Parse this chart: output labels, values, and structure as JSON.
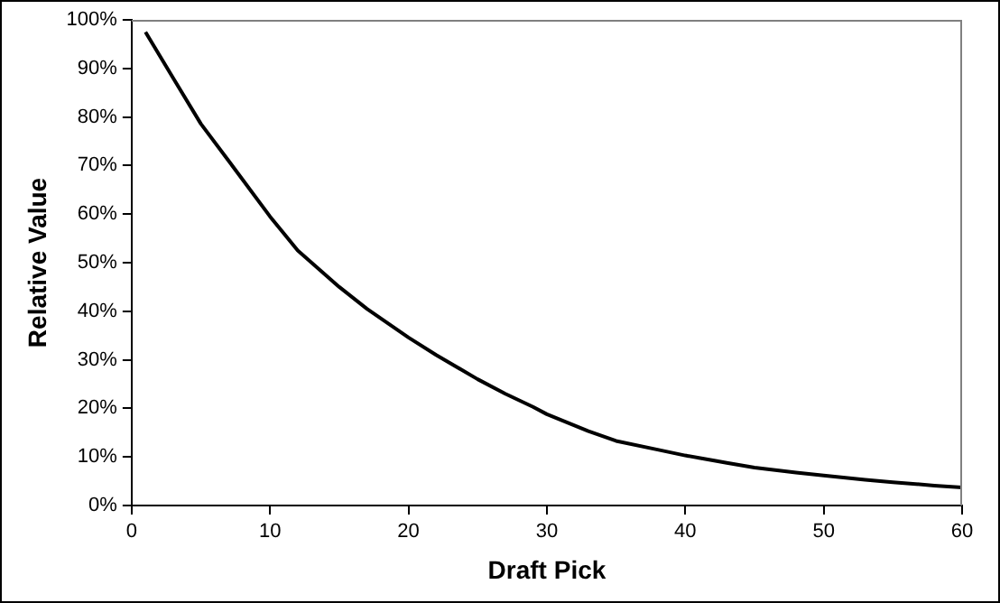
{
  "chart_data": {
    "type": "line",
    "xlabel": "Draft Pick",
    "ylabel": "Relative Value",
    "x": [
      1,
      3,
      5,
      7,
      10,
      12,
      15,
      17,
      20,
      22,
      25,
      27,
      29,
      30,
      33,
      35,
      38,
      40,
      43,
      45,
      48,
      50,
      53,
      55,
      58,
      60
    ],
    "series": [
      {
        "color": "#000000",
        "values": [
          97.5,
          88,
          78.6,
          71,
          59.5,
          52.5,
          45,
          40.5,
          34.6,
          31,
          26,
          23,
          20.3,
          18.8,
          15.3,
          13.3,
          11.5,
          10.3,
          8.8,
          7.8,
          6.8,
          6.2,
          5.3,
          4.8,
          4.1,
          3.7
        ]
      }
    ],
    "xlim": [
      0,
      60
    ],
    "xticks": [
      0,
      10,
      20,
      30,
      40,
      50,
      60
    ],
    "ylim": [
      0,
      100
    ],
    "yticks": [
      {
        "value": 0,
        "label": "0%"
      },
      {
        "value": 10,
        "label": "10%"
      },
      {
        "value": 20,
        "label": "20%"
      },
      {
        "value": 30,
        "label": "30%"
      },
      {
        "value": 40,
        "label": "40%"
      },
      {
        "value": 50,
        "label": "50%"
      },
      {
        "value": 60,
        "label": "60%"
      },
      {
        "value": 70,
        "label": "70%"
      },
      {
        "value": 80,
        "label": "80%"
      },
      {
        "value": 90,
        "label": "90%"
      },
      {
        "value": 100,
        "label": "100%"
      }
    ],
    "grid": false,
    "legend": false,
    "marker": "none",
    "line_style": "solid"
  }
}
